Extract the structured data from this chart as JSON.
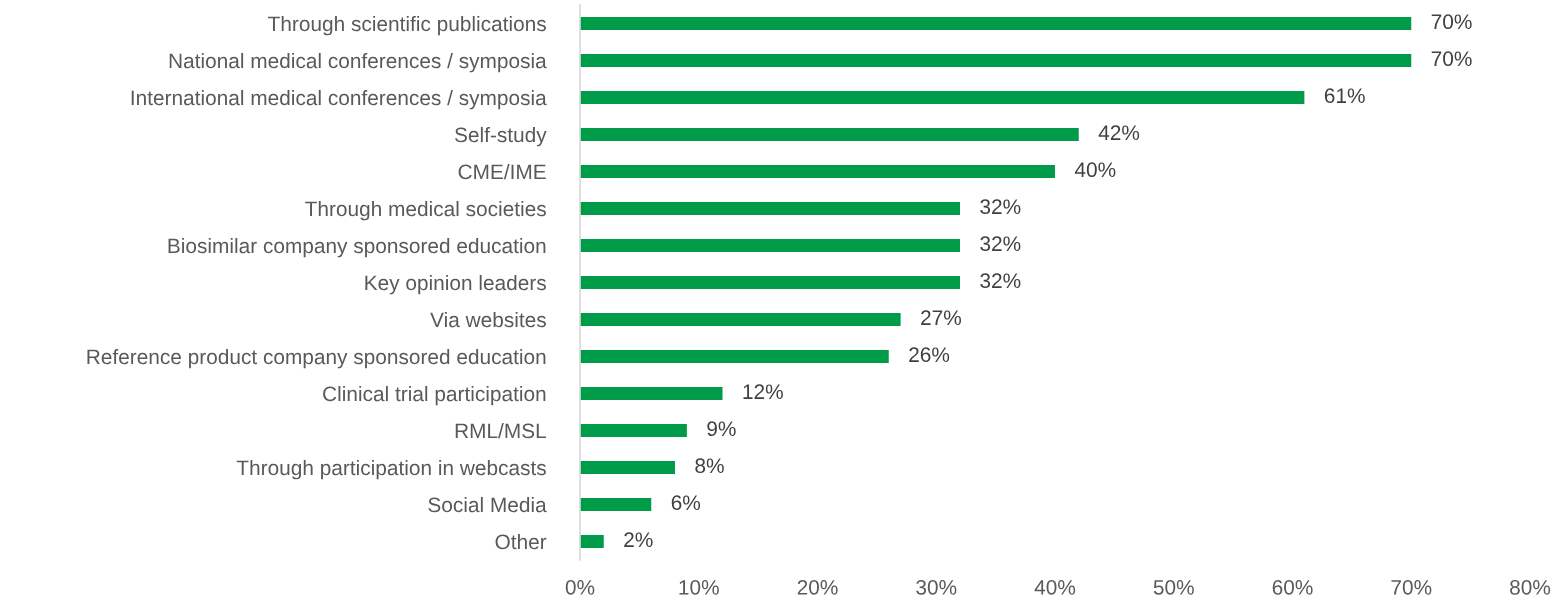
{
  "chart_data": {
    "type": "bar",
    "orientation": "horizontal",
    "categories": [
      "Through scientific publications",
      "National medical conferences / symposia",
      "International medical conferences / symposia",
      "Self-study",
      "CME/IME",
      "Through medical societies",
      "Biosimilar company sponsored education",
      "Key opinion leaders",
      "Via websites",
      "Reference product company sponsored education",
      "Clinical trial participation",
      "RML/MSL",
      "Through participation in webcasts",
      "Social Media",
      "Other"
    ],
    "values": [
      70,
      70,
      61,
      42,
      40,
      32,
      32,
      32,
      27,
      26,
      12,
      9,
      8,
      6,
      2
    ],
    "value_labels": [
      "70%",
      "70%",
      "61%",
      "42%",
      "40%",
      "32%",
      "32%",
      "32%",
      "27%",
      "26%",
      "12%",
      "9%",
      "8%",
      "6%",
      "2%"
    ],
    "color": "#009b48",
    "xlim": [
      0,
      80
    ],
    "xticks": [
      {
        "value": 0,
        "label": "0%"
      },
      {
        "value": 10,
        "label": "10%"
      },
      {
        "value": 20,
        "label": "20%"
      },
      {
        "value": 30,
        "label": "30%"
      },
      {
        "value": 40,
        "label": "40%"
      },
      {
        "value": 50,
        "label": "50%"
      },
      {
        "value": 60,
        "label": "60%"
      },
      {
        "value": 70,
        "label": "70%"
      },
      {
        "value": 80,
        "label": "80%"
      }
    ]
  }
}
